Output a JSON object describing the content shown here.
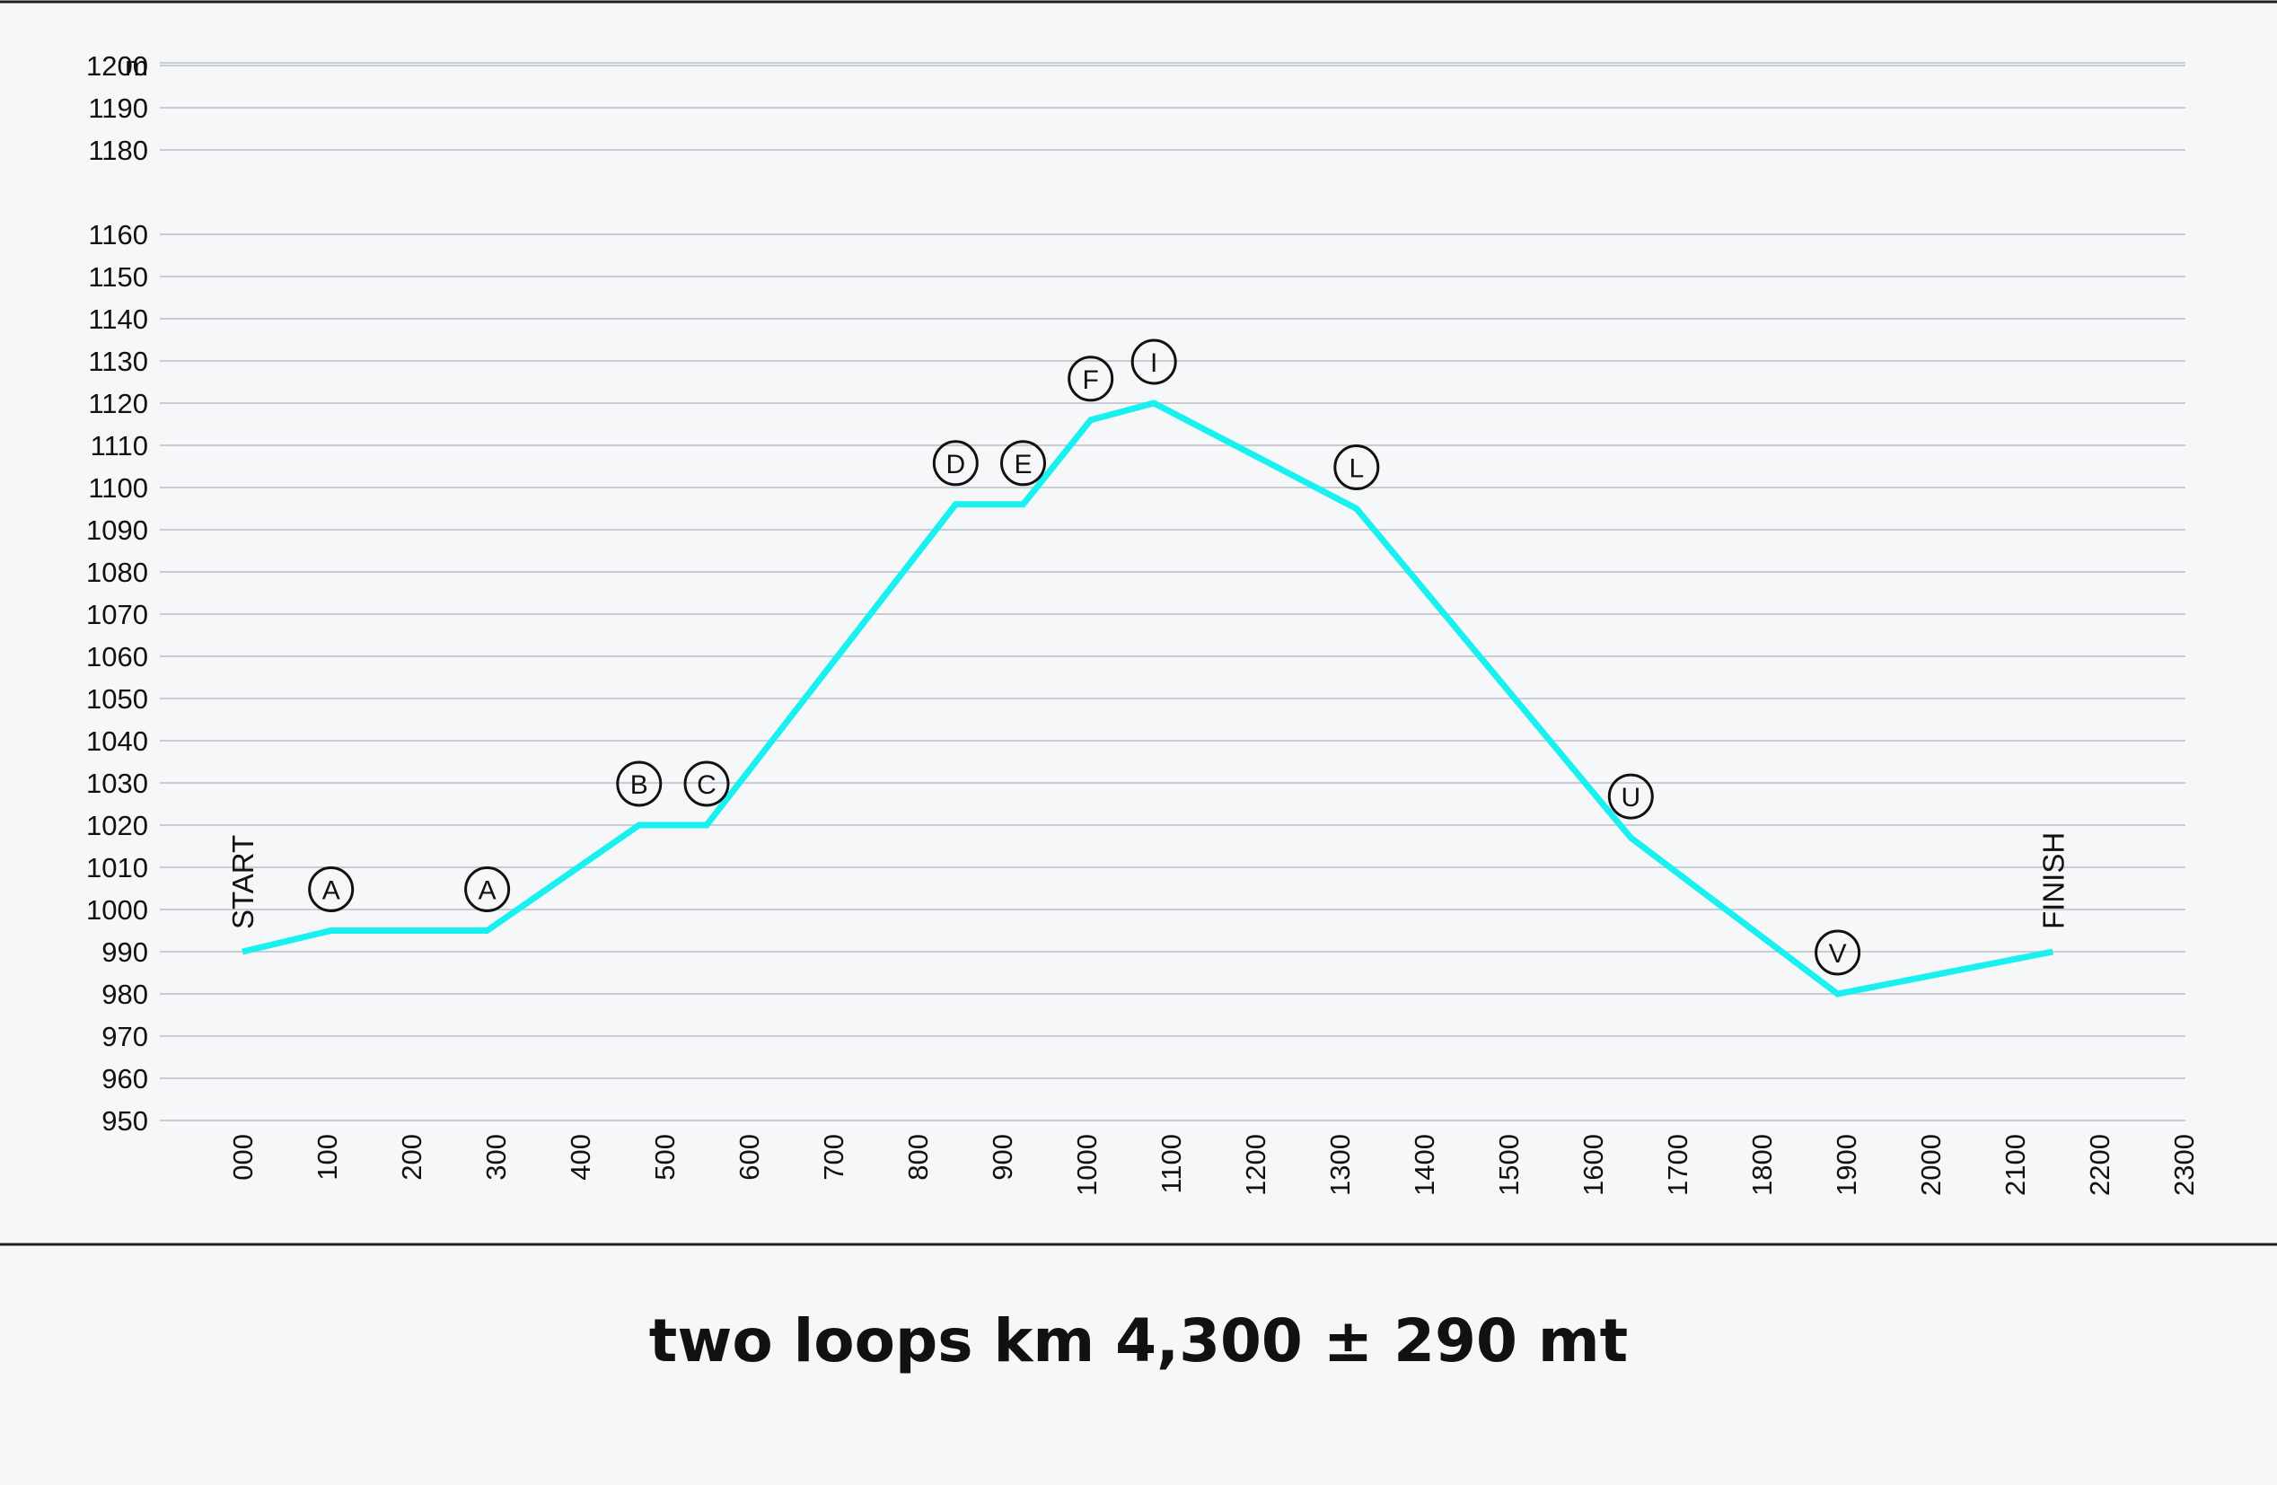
{
  "chart_data": {
    "type": "line",
    "title": "",
    "ylabel": "m",
    "xlabel": "",
    "ylim": [
      950,
      1200
    ],
    "xlim": [
      0,
      2300
    ],
    "yticks": [
      950,
      960,
      970,
      980,
      990,
      1000,
      1010,
      1020,
      1030,
      1040,
      1050,
      1060,
      1070,
      1080,
      1090,
      1100,
      1110,
      1120,
      1130,
      1140,
      1150,
      1160,
      1180,
      1190,
      1200
    ],
    "xticks": [
      "000",
      "100",
      "200",
      "300",
      "400",
      "500",
      "600",
      "700",
      "800",
      "900",
      "1000",
      "1100",
      "1200",
      "1300",
      "1400",
      "1500",
      "1600",
      "1700",
      "1800",
      "1900",
      "2000",
      "2100",
      "2200",
      "2300"
    ],
    "grid": true,
    "line_color": "#19f0f0",
    "series": [
      {
        "x": [
          0,
          105,
          290,
          470,
          550,
          845,
          925,
          1005,
          1080,
          1320,
          1645,
          1890,
          2145
        ],
        "y": [
          990,
          995,
          995,
          1020,
          1020,
          1096,
          1096,
          1116,
          1120,
          1095,
          1017,
          980,
          990
        ]
      }
    ],
    "markers": [
      {
        "label": "A",
        "x": 105,
        "y": 995
      },
      {
        "label": "A",
        "x": 290,
        "y": 995
      },
      {
        "label": "B",
        "x": 470,
        "y": 1020
      },
      {
        "label": "C",
        "x": 550,
        "y": 1020
      },
      {
        "label": "D",
        "x": 845,
        "y": 1096
      },
      {
        "label": "E",
        "x": 925,
        "y": 1096
      },
      {
        "label": "F",
        "x": 1005,
        "y": 1116
      },
      {
        "label": "I",
        "x": 1080,
        "y": 1120
      },
      {
        "label": "L",
        "x": 1320,
        "y": 1095
      },
      {
        "label": "U",
        "x": 1645,
        "y": 1017
      },
      {
        "label": "V",
        "x": 1890,
        "y": 980
      }
    ],
    "start_label": "START",
    "finish_label": "FINISH"
  },
  "caption": "two loops km 4,300 ± 290 mt"
}
